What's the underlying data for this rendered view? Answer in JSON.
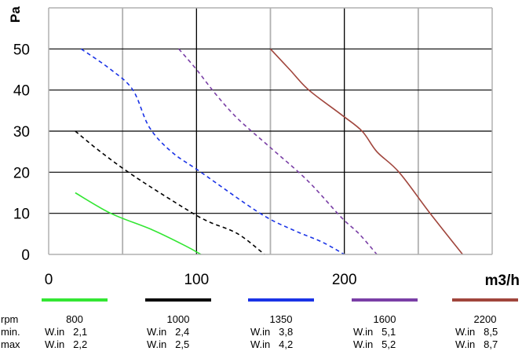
{
  "chart_data": {
    "type": "line",
    "ylabel": "Pa",
    "xlabel": "m3/h",
    "xlim": [
      0,
      300
    ],
    "ylim": [
      0,
      60
    ],
    "x_ticks": [
      "0",
      "100",
      "200"
    ],
    "y_ticks": [
      "0",
      "10",
      "20",
      "30",
      "40",
      "50"
    ],
    "grid": true,
    "series": [
      {
        "name": "800",
        "color": "#33e633",
        "dash": "solid",
        "x": [
          18,
          42,
          70,
          93,
          103
        ],
        "y": [
          15,
          10,
          6,
          2,
          0
        ]
      },
      {
        "name": "1000",
        "color": "#000000",
        "dash": "dashed",
        "x": [
          18,
          35,
          58,
          93,
          108,
          128,
          146
        ],
        "y": [
          30,
          25,
          19,
          11,
          8,
          5,
          0
        ]
      },
      {
        "name": "1350",
        "color": "#1a33e6",
        "dash": "dashed",
        "x": [
          22,
          42,
          57,
          68,
          83,
          103,
          143,
          165,
          185,
          200
        ],
        "y": [
          50,
          45,
          40,
          31,
          25,
          20,
          10,
          6,
          3,
          0
        ]
      },
      {
        "name": "1600",
        "color": "#7a3fa6",
        "dash": "dashed",
        "x": [
          88,
          100,
          113,
          128,
          150,
          175,
          198,
          210,
          222
        ],
        "y": [
          50,
          45,
          39,
          33,
          26,
          18,
          9,
          5,
          0
        ]
      },
      {
        "name": "2200",
        "color": "#a0453c",
        "dash": "solid",
        "x": [
          150,
          163,
          176,
          198,
          212,
          222,
          237,
          258,
          280
        ],
        "y": [
          50,
          45,
          40,
          34,
          30,
          25,
          20,
          10,
          0
        ]
      }
    ]
  },
  "legend_table": {
    "row_labels": [
      "rpm",
      "min.",
      "max"
    ],
    "columns": [
      {
        "rpm": "800",
        "min": "W.in   2,1",
        "max": "W.in   2,2"
      },
      {
        "rpm": "1000",
        "min": "W.in   2,4",
        "max": "W.in   2,5"
      },
      {
        "rpm": "1350",
        "min": "W.in   3,8",
        "max": "W.in   4,2"
      },
      {
        "rpm": "1600",
        "min": "W.in   5,1",
        "max": "W.in   5,2"
      },
      {
        "rpm": "2200",
        "min": "W.in   8,5",
        "max": "W.in   8,7"
      }
    ]
  }
}
